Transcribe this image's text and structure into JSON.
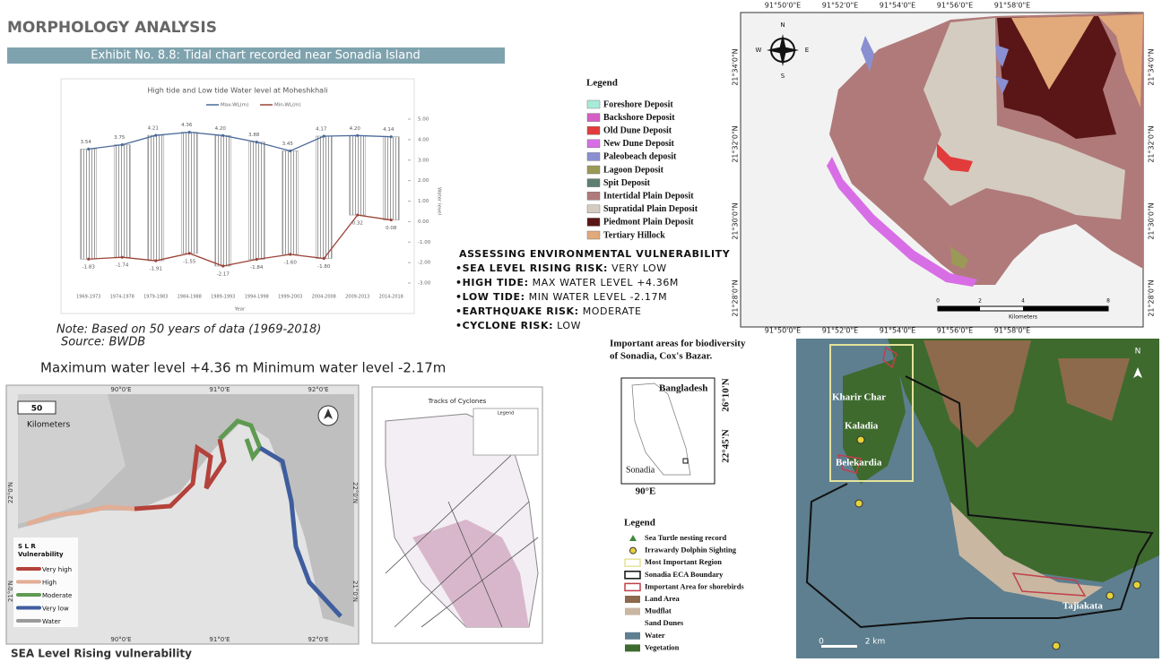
{
  "header": {
    "title": "MORPHOLOGY ANALYSIS",
    "exhibit": "Exhibit No. 8.8: Tidal chart recorded near Sonadia Island"
  },
  "tidal_chart": {
    "type": "bar",
    "title": "High tide and Low tide Water level at Moheshkhali",
    "x_label": "Year",
    "y_label": "Water level",
    "categories": [
      "1969-1973",
      "1974-1978",
      "1979-1983",
      "1984-1988",
      "1989-1993",
      "1994-1998",
      "1999-2003",
      "2004-2008",
      "2009-2013",
      "2014-2018"
    ],
    "series": [
      {
        "name": "Max-WL(m)",
        "color": "#4a6a9a",
        "values": [
          3.54,
          3.75,
          4.21,
          4.36,
          4.2,
          3.88,
          3.45,
          4.17,
          4.2,
          4.14
        ],
        "value_labels": [
          "3.54",
          "3.75",
          "4.21",
          "4.36",
          "4.20",
          "3.88",
          "3.45",
          "4.17",
          "4.20",
          "4.14"
        ]
      },
      {
        "name": "Min-WL(m)",
        "color": "#9c4438",
        "values": [
          -1.83,
          -1.74,
          -1.91,
          -1.55,
          -2.17,
          -1.84,
          -1.6,
          -1.8,
          0.32,
          0.08
        ],
        "value_labels": [
          "-1.83",
          "-1.74",
          "-1.91",
          "-1.55",
          "-2.17",
          "-1.84",
          "-1.60",
          "-1.80",
          "0.32",
          "0.08"
        ]
      }
    ],
    "ylim": [
      -3,
      5
    ],
    "yticks": [
      {
        "value": 5,
        "label": "5.00"
      },
      {
        "value": 4,
        "label": "4.00"
      },
      {
        "value": 3,
        "label": "3.00"
      },
      {
        "value": 2,
        "label": "2.00"
      },
      {
        "value": 1,
        "label": "1.00"
      },
      {
        "value": 0,
        "label": "0.00"
      },
      {
        "value": -1,
        "label": "-1.00"
      },
      {
        "value": -2,
        "label": "-2.00"
      },
      {
        "value": -3,
        "label": "-3.00"
      }
    ]
  },
  "notes": {
    "note": "Note: Based on 50 years of data (1969-2018)",
    "source": "Source: BWDB",
    "summary": "Maximum water level +4.36 m  Minimum water level  -2.17m"
  },
  "vulnerability": {
    "title": "ASSESSING ENVIRONMENTAL VULNERABILITY",
    "items": [
      {
        "label": "•SEA LEVEL RISING RISK:",
        "value": "VERY LOW"
      },
      {
        "label": "•HIGH TIDE:",
        "value": "MAX WATER LEVEL +4.36M"
      },
      {
        "label": "•LOW TIDE:",
        "value": "MIN WATER LEVEL -2.17M"
      },
      {
        "label": "•EARTHQUAKE RISK:",
        "value": "MODERATE"
      },
      {
        "label": "•CYCLONE RISK:",
        "value": "LOW"
      }
    ]
  },
  "morphology_map": {
    "legend_title": "Legend",
    "legend": [
      {
        "name": "Foreshore  Deposit",
        "color": "#a8ead8"
      },
      {
        "name": "Backshore Deposit",
        "color": "#d65fc6"
      },
      {
        "name": "Old Dune Deposit",
        "color": "#e23b3b"
      },
      {
        "name": "New Dune Deposit",
        "color": "#d86ee6"
      },
      {
        "name": "Paleobeach deposit",
        "color": "#8a8fd2"
      },
      {
        "name": "Lagoon Deposit",
        "color": "#9a9a56"
      },
      {
        "name": "Spit Deposit",
        "color": "#5e7e70"
      },
      {
        "name": "Intertidal Plain Deposit",
        "color": "#b07a7a"
      },
      {
        "name": "Supratidal Plain Deposit",
        "color": "#d4ccc1"
      },
      {
        "name": "Piedmont Plain Deposit",
        "color": "#5a1616"
      },
      {
        "name": "Tertiary Hillock",
        "color": "#e2aa7a"
      }
    ],
    "lon_coords": [
      "91°50'0\"E",
      "91°52'0\"E",
      "91°54'0\"E",
      "91°56'0\"E",
      "91°58'0\"E"
    ],
    "lat_coords": [
      "21°34'0\"N",
      "21°32'0\"N",
      "21°30'0\"N",
      "21°28'0\"N"
    ],
    "compass": [
      "N",
      "S",
      "W",
      "E"
    ],
    "scale": [
      "0",
      "2",
      "4",
      "8"
    ],
    "scale_unit": "Kilometers"
  },
  "slr_map": {
    "scale": "50",
    "scale_unit": "Kilometers",
    "lon_coords": [
      "90°0'E",
      "91°0'E",
      "92°0'E"
    ],
    "lat_coords": [
      "22°0'N",
      "21°0'N"
    ],
    "legend_title": "S L R\nVulnerability",
    "legend": [
      {
        "name": "Very high",
        "color": "#b3423a"
      },
      {
        "name": "High",
        "color": "#e2ad95"
      },
      {
        "name": "Moderate",
        "color": "#5f9a52"
      },
      {
        "name": "Very low",
        "color": "#3f5d9e"
      },
      {
        "name": "Water",
        "color": "#9a9a9a"
      }
    ],
    "caption": "SEA Level Rising vulnerability"
  },
  "cyclone_map": {
    "title": "Tracks of Cyclones",
    "legend_title": "Legend"
  },
  "biodiversity_map": {
    "title_lines": [
      "Important areas for biodiversity",
      "of Sonadia, Cox's Bazar."
    ],
    "inset": {
      "country": "Bangladesh",
      "lat_top": "26°10'N",
      "lat_bottom": "22°45'N",
      "lon": "90°E",
      "site": "Sonadia"
    },
    "legend_title": "Legend",
    "legend": [
      {
        "name": "Sea Turtle nesting record",
        "color": "#3f8a3a"
      },
      {
        "name": "Irrawardy Dolphin Sighting",
        "color": "#e6d23a"
      },
      {
        "name": "Most Important Region",
        "color": "#e4e39a"
      },
      {
        "name": "Sonadia ECA Boundary",
        "color": "#111111"
      },
      {
        "name": "Important Area for shorebirds",
        "color": "#c0404a"
      },
      {
        "name": "Land Area",
        "color": "#8d6a4c"
      },
      {
        "name": "Mudflat",
        "color": "#c9b7a2"
      },
      {
        "name": "Sand Dunes",
        "color": "#ffffff"
      },
      {
        "name": "Water",
        "color": "#5d7f90"
      },
      {
        "name": "Vegetation",
        "color": "#3e6a2e"
      }
    ],
    "places": [
      "Kharir Char",
      "Kaladia",
      "Belekardia",
      "Tajiakata"
    ],
    "scale": [
      "0",
      "2 km"
    ],
    "north": "N"
  }
}
